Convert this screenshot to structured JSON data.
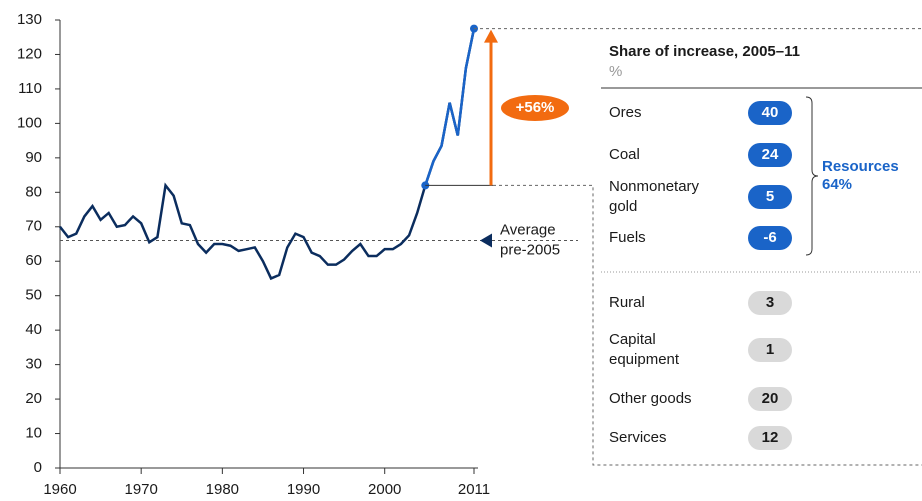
{
  "chart_data": {
    "type": "line",
    "x": [
      1960,
      1961,
      1962,
      1963,
      1964,
      1965,
      1966,
      1967,
      1968,
      1969,
      1970,
      1971,
      1972,
      1973,
      1974,
      1975,
      1976,
      1977,
      1978,
      1979,
      1980,
      1981,
      1982,
      1983,
      1984,
      1985,
      1986,
      1987,
      1988,
      1989,
      1990,
      1991,
      1992,
      1993,
      1994,
      1995,
      1996,
      1997,
      1998,
      1999,
      2000,
      2001,
      2002,
      2003,
      2004,
      2005,
      2006,
      2007,
      2008,
      2009,
      2010,
      2011
    ],
    "series": [
      {
        "color": "#0b2d5e",
        "highlight_color": "#1a64c8",
        "values": [
          70,
          67,
          68,
          73,
          76,
          72,
          74,
          70,
          70.5,
          73,
          71,
          65.5,
          67,
          82,
          79,
          71,
          70.5,
          65,
          62.5,
          65,
          65,
          64.5,
          63,
          63.5,
          64,
          60,
          55,
          56,
          64,
          68,
          67,
          62.5,
          61.5,
          59,
          59,
          60.5,
          63,
          65,
          61.5,
          61.5,
          63.5,
          63.5,
          65,
          67.5,
          74,
          82,
          89,
          93.5,
          106,
          96.5,
          116,
          127.5
        ]
      }
    ],
    "xlim": [
      1960,
      2011
    ],
    "xticks": [
      1960,
      1970,
      1980,
      1990,
      2000,
      2011
    ],
    "ylim": [
      0,
      130
    ],
    "yticks": [
      0,
      10,
      20,
      30,
      40,
      50,
      60,
      70,
      80,
      90,
      100,
      110,
      120,
      130
    ],
    "average": {
      "value": 66,
      "label": "Average pre-2005"
    },
    "increase": {
      "label": "+56%",
      "color": "#f26b10"
    },
    "panel": {
      "title": "Share of increase, 2005–11",
      "unit": "%",
      "items": [
        {
          "name": "Ores",
          "value": 40,
          "color": "#1a64c8"
        },
        {
          "name": "Coal",
          "value": 24,
          "color": "#1a64c8"
        },
        {
          "name": "Nonmonetary gold",
          "value": 5,
          "color": "#1a64c8"
        },
        {
          "name": "Fuels",
          "value": -6,
          "color": "#1a64c8"
        },
        {
          "name": "Rural",
          "value": 3,
          "color": "#d9d9d9"
        },
        {
          "name": "Capital equipment",
          "value": 1,
          "color": "#d9d9d9"
        },
        {
          "name": "Other goods",
          "value": 20,
          "color": "#d9d9d9"
        },
        {
          "name": "Services",
          "value": 12,
          "color": "#d9d9d9"
        }
      ],
      "bracket": {
        "name": "Resources",
        "value": 64,
        "value_label": "64%",
        "color": "#1a64c8"
      }
    }
  }
}
